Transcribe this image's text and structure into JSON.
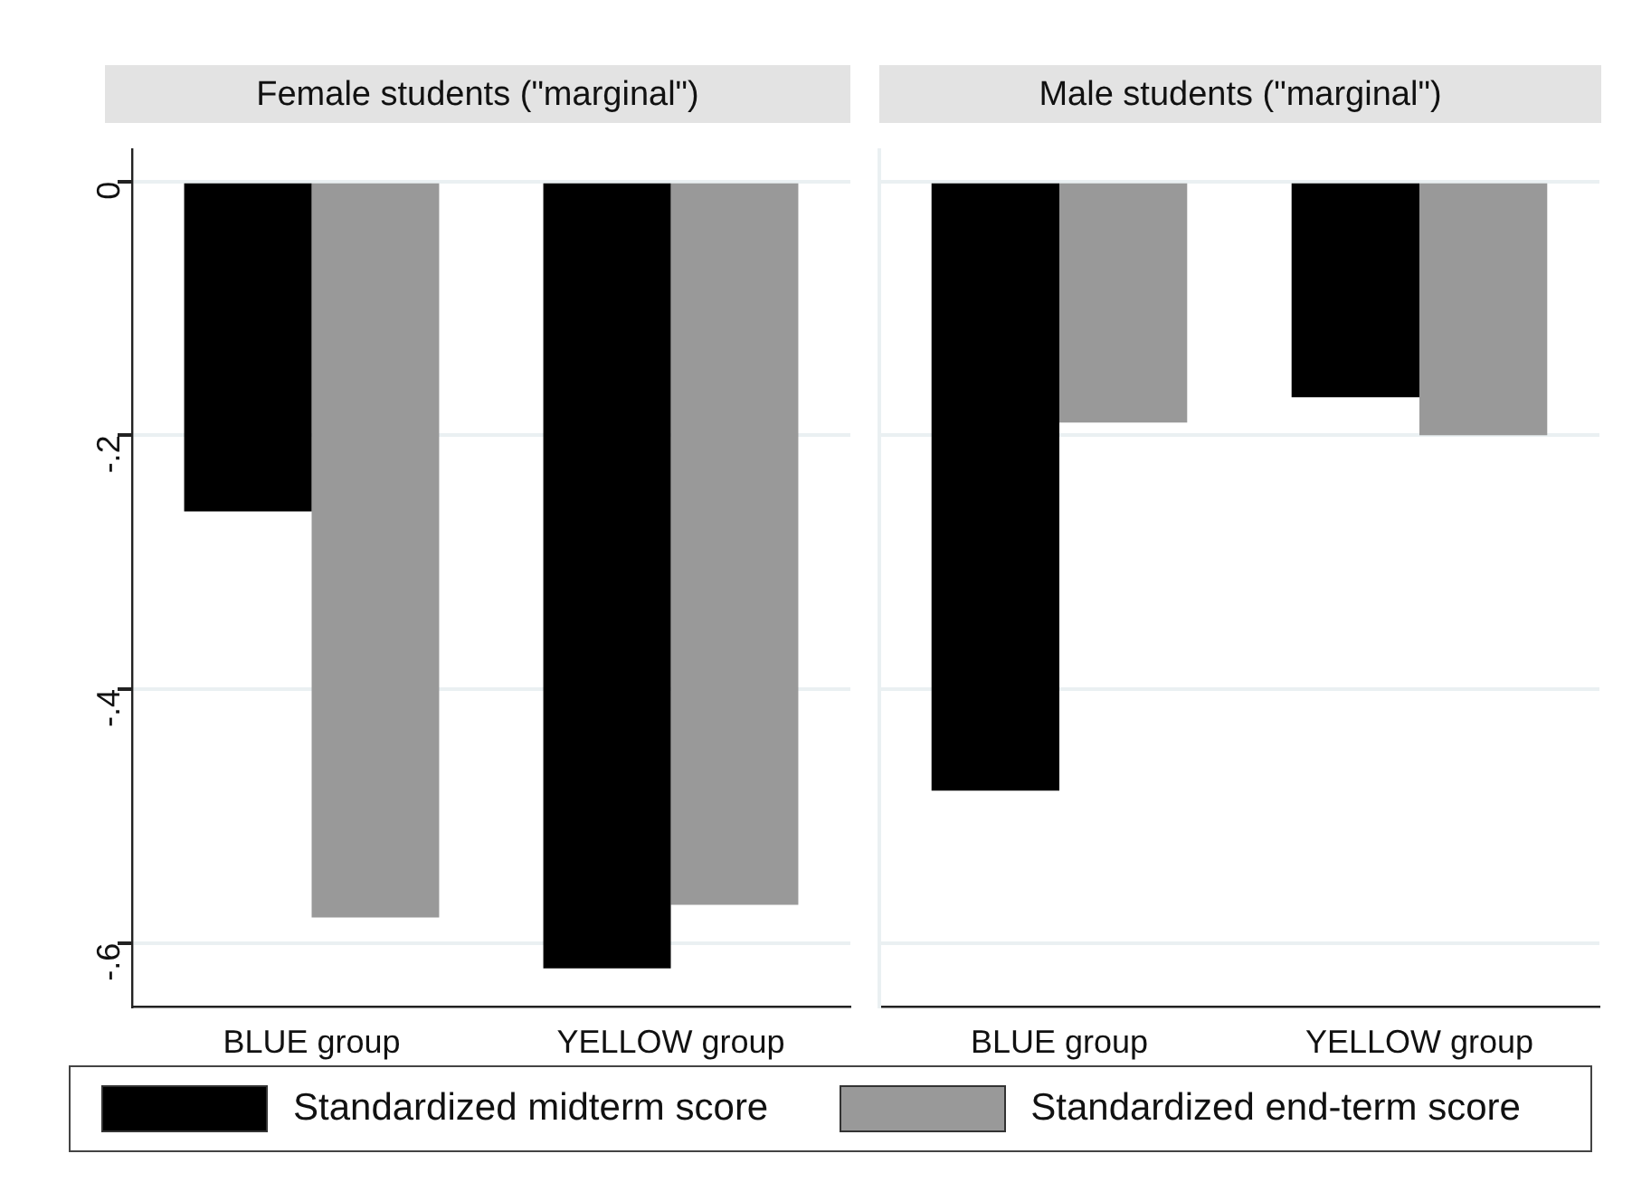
{
  "chart_data": [
    {
      "type": "bar",
      "title": "Female students (\"marginal\")",
      "categories": [
        "BLUE group",
        "YELLOW group"
      ],
      "series": [
        {
          "name": "Standardized midterm score",
          "color": "#000000",
          "values": [
            -0.26,
            -0.62
          ]
        },
        {
          "name": "Standardized end-term score",
          "color": "#999999",
          "values": [
            -0.58,
            -0.57
          ]
        }
      ],
      "ylim": [
        -0.65,
        0.025
      ],
      "yticks": [
        {
          "value": -0.6,
          "label": "-.6"
        },
        {
          "value": -0.4,
          "label": "-.4"
        },
        {
          "value": -0.2,
          "label": "-.2"
        },
        0
      ],
      "grid": "y",
      "legend": "bottom"
    },
    {
      "type": "bar",
      "title": "Male students (\"marginal\")",
      "categories": [
        "BLUE group",
        "YELLOW group"
      ],
      "series": [
        {
          "color": "#000000",
          "values": [
            -0.48,
            -0.17
          ]
        },
        {
          "color": "#999999",
          "values": [
            -0.19,
            -0.2
          ]
        }
      ],
      "ylim": [
        -0.65,
        0.025
      ],
      "yticks": [
        {
          "value": -0.6,
          "label": null
        },
        {
          "value": -0.4,
          "label": null
        },
        {
          "value": -0.2,
          "label": null
        },
        {
          "value": 0,
          "label": null
        }
      ],
      "grid": "y",
      "tick_labels": "x"
    }
  ]
}
